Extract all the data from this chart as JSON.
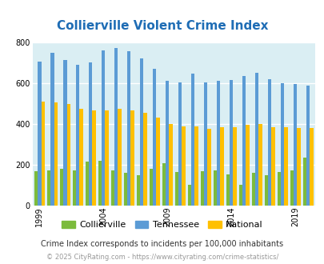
{
  "title": "Collierville Violent Crime Index",
  "years": [
    1999,
    2000,
    2001,
    2002,
    2003,
    2004,
    2005,
    2006,
    2007,
    2008,
    2009,
    2010,
    2011,
    2012,
    2013,
    2014,
    2015,
    2016,
    2017,
    2018,
    2019,
    2020
  ],
  "collierville": [
    170,
    175,
    180,
    175,
    215,
    220,
    175,
    160,
    150,
    180,
    210,
    165,
    105,
    170,
    175,
    155,
    105,
    160,
    150,
    165,
    175,
    235
  ],
  "tennessee": [
    705,
    750,
    715,
    690,
    700,
    760,
    770,
    755,
    720,
    670,
    610,
    605,
    645,
    605,
    610,
    615,
    635,
    650,
    620,
    600,
    595,
    590
  ],
  "national": [
    510,
    505,
    500,
    475,
    465,
    465,
    475,
    465,
    455,
    430,
    400,
    390,
    390,
    375,
    385,
    385,
    395,
    400,
    385,
    385,
    380,
    380
  ],
  "collierville_color": "#7cbb3c",
  "tennessee_color": "#5b9bd5",
  "national_color": "#ffc000",
  "bg_color": "#daeef3",
  "ylim": [
    0,
    800
  ],
  "yticks": [
    0,
    200,
    400,
    600,
    800
  ],
  "xlabel_years": [
    1999,
    2004,
    2009,
    2014,
    2019
  ],
  "title_color": "#1f6db5",
  "title_fontsize": 11,
  "legend_labels": [
    "Collierville",
    "Tennessee",
    "National"
  ],
  "footnote1": "Crime Index corresponds to incidents per 100,000 inhabitants",
  "footnote2": "© 2025 CityRating.com - https://www.cityrating.com/crime-statistics/",
  "footnote1_color": "#333333",
  "footnote2_color": "#999999",
  "bar_width": 0.27
}
